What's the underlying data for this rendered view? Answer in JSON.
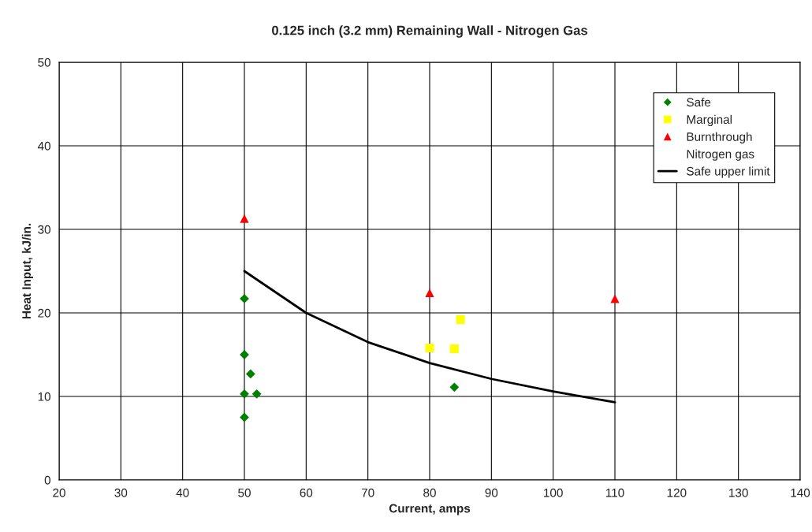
{
  "chart_data": {
    "type": "scatter",
    "title": "0.125 inch (3.2 mm) Remaining Wall - Nitrogen Gas",
    "xlabel": "Current, amps",
    "ylabel": "Heat Input, kJ/in.",
    "xlim": [
      20,
      140
    ],
    "xticks": [
      20,
      30,
      40,
      50,
      60,
      70,
      80,
      90,
      100,
      110,
      120,
      130,
      140
    ],
    "ylim": [
      0,
      50
    ],
    "yticks": [
      0,
      10,
      20,
      30,
      40,
      50
    ],
    "grid": true,
    "legend": "top right",
    "series": [
      {
        "name": "Safe",
        "marker": "diamond",
        "color": "#008000",
        "x": [
          50,
          50,
          51,
          50,
          52,
          50,
          84
        ],
        "values": [
          21.7,
          15.0,
          12.7,
          10.3,
          10.3,
          7.5,
          11.1
        ]
      },
      {
        "name": "Marginal",
        "marker": "square",
        "color": "#ffff00",
        "x": [
          80,
          84,
          85
        ],
        "values": [
          15.8,
          15.7,
          19.2
        ]
      },
      {
        "name": "Burnthrough",
        "marker": "triangle",
        "color": "#ff0000",
        "x": [
          50,
          80,
          110
        ],
        "values": [
          31.3,
          22.4,
          21.7
        ]
      },
      {
        "name": "Nitrogen gas",
        "marker": "none"
      },
      {
        "name": "Safe upper limit",
        "type": "line",
        "marker": "none",
        "line_style": "solid",
        "color": "#000000",
        "x": [
          50,
          60,
          70,
          80,
          90,
          100,
          110
        ],
        "values": [
          25.0,
          20.0,
          16.5,
          14.0,
          12.1,
          10.6,
          9.3
        ]
      }
    ]
  }
}
